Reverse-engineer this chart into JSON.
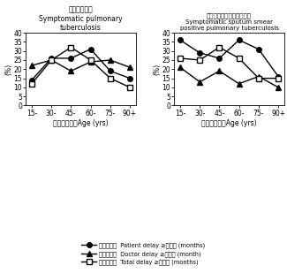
{
  "x_labels": [
    "15-",
    "30-",
    "45-",
    "60-",
    "75-",
    "90+"
  ],
  "x_vals": [
    0,
    1,
    2,
    3,
    4,
    5
  ],
  "left": {
    "title_jp": "有症状肺結核",
    "title_en1": "Symptomatic pulmonary",
    "title_en2": "tuberculosis",
    "patient_delay": [
      14,
      26,
      26,
      31,
      19,
      15
    ],
    "doctor_delay": [
      22,
      25,
      19,
      24,
      25,
      21
    ],
    "total_delay": [
      12,
      25,
      32,
      25,
      15,
      10
    ]
  },
  "right": {
    "title_jp": "有症状略痰塗抹陽性肺結核",
    "title_en1": "Symptomatic sputum smear",
    "title_en2": "positive pulmonary tuberculosis",
    "patient_delay": [
      36,
      29,
      26,
      36,
      31,
      16
    ],
    "doctor_delay": [
      21,
      13,
      19,
      12,
      16,
      10
    ],
    "total_delay": [
      26,
      25,
      32,
      26,
      15,
      15
    ]
  },
  "ylim": [
    0,
    40
  ],
  "yticks": [
    0,
    5,
    10,
    15,
    20,
    25,
    30,
    35,
    40
  ],
  "ylabel": "(%)",
  "xlabel_jp": "年齢（歳）",
  "xlabel_en": "Age (yrs)",
  "legend": [
    {
      "label_jp": "受診の遅れ",
      "label_en": "Patient delay ≥2カ月 (months)",
      "marker": "o",
      "color": "#000000",
      "linestyle": "-"
    },
    {
      "label_jp": "診断の遅れ",
      "label_en": "Doctor delay ≥1カ月 (month)",
      "marker": "^",
      "color": "#000000",
      "linestyle": "-"
    },
    {
      "label_jp": "発見の遅れ",
      "label_en": "Total delay ≥3カ月 (months)",
      "marker": "s",
      "color": "#000000",
      "linestyle": "-"
    }
  ],
  "background_color": "#ffffff",
  "line_color": "#000000"
}
